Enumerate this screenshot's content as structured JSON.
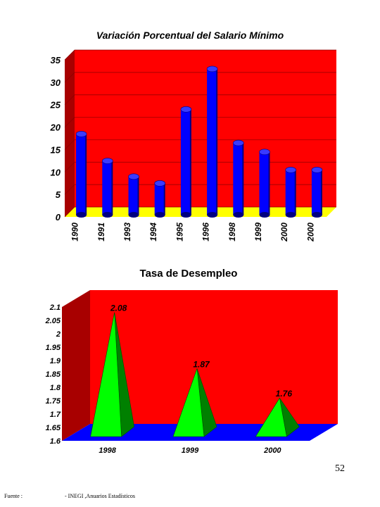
{
  "chart_data": [
    {
      "type": "bar",
      "title": "Variación Porcentual del Salario Mínimo",
      "categories": [
        "1990",
        "1991",
        "1993",
        "1994",
        "1995",
        "1996",
        "1998",
        "1999",
        "2000",
        "2000"
      ],
      "values": [
        18,
        12,
        8.5,
        7,
        23.5,
        32.5,
        16,
        14,
        10,
        10
      ],
      "ylim": [
        0,
        35
      ],
      "yticks": [
        "0",
        "5",
        "10",
        "15",
        "20",
        "25",
        "30",
        "35"
      ],
      "grid": true,
      "colors": {
        "background": "#ff0000",
        "floor": "#ffff00",
        "bar": "#0000ff",
        "bar_side": "#000080"
      }
    },
    {
      "type": "area",
      "title": "Tasa de Desempleo",
      "categories": [
        "1998",
        "1999",
        "2000"
      ],
      "values": [
        2.08,
        1.87,
        1.76
      ],
      "data_labels": [
        "2.08",
        "1.87",
        "1.76"
      ],
      "ylim": [
        1.6,
        2.1
      ],
      "yticks": [
        "1.6",
        "1.65",
        "1.7",
        "1.75",
        "1.8",
        "1.85",
        "1.9",
        "1.95",
        "2",
        "2.05",
        "2.1"
      ],
      "grid": false,
      "colors": {
        "background": "#ff0000",
        "floor": "#0000ff",
        "pyramid": "#00ff00",
        "pyramid_side": "#008000"
      }
    }
  ],
  "page_number": "52",
  "footer": {
    "label": "Fuente :",
    "source": "- INEGI ,Anuarios Estadísticos"
  }
}
